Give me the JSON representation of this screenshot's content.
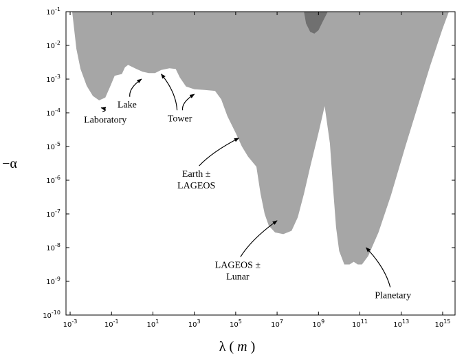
{
  "chart_data": {
    "type": "area",
    "title": "",
    "xlabel_symbol": "λ",
    "xlabel_unit": "m",
    "ylabel": "−α",
    "x_scale": "log",
    "y_scale": "log",
    "xlim_exp": [
      -3.2,
      15.6
    ],
    "ylim_exp": [
      -10,
      -1
    ],
    "x_ticks": [
      {
        "exp": -3,
        "label_base": "10",
        "label_exp": "-3"
      },
      {
        "exp": -1,
        "label_base": "10",
        "label_exp": "-1"
      },
      {
        "exp": 1,
        "label_base": "10",
        "label_exp": "1"
      },
      {
        "exp": 3,
        "label_base": "10",
        "label_exp": "3"
      },
      {
        "exp": 5,
        "label_base": "10",
        "label_exp": "5"
      },
      {
        "exp": 7,
        "label_base": "10",
        "label_exp": "7"
      },
      {
        "exp": 9,
        "label_base": "10",
        "label_exp": "9"
      },
      {
        "exp": 11,
        "label_base": "10",
        "label_exp": "11"
      },
      {
        "exp": 13,
        "label_base": "10",
        "label_exp": "13"
      },
      {
        "exp": 15,
        "label_base": "10",
        "label_exp": "15"
      }
    ],
    "y_ticks": [
      {
        "exp": -1,
        "label_base": "10",
        "label_exp": "-1"
      },
      {
        "exp": -2,
        "label_base": "10",
        "label_exp": "-2"
      },
      {
        "exp": -3,
        "label_base": "10",
        "label_exp": "-3"
      },
      {
        "exp": -4,
        "label_base": "10",
        "label_exp": "-4"
      },
      {
        "exp": -5,
        "label_base": "10",
        "label_exp": "-5"
      },
      {
        "exp": -6,
        "label_base": "10",
        "label_exp": "-6"
      },
      {
        "exp": -7,
        "label_base": "10",
        "label_exp": "-7"
      },
      {
        "exp": -8,
        "label_base": "10",
        "label_exp": "-8"
      },
      {
        "exp": -9,
        "label_base": "10",
        "label_exp": "-9"
      },
      {
        "exp": -10,
        "label_base": "10",
        "label_exp": "-10"
      }
    ],
    "colors": {
      "excluded_region": "#a6a6a6",
      "dark_region": "#707070"
    },
    "excluded_boundary_log10": [
      [
        -2.9,
        -1
      ],
      [
        -2.7,
        -2.1
      ],
      [
        -2.5,
        -2.7
      ],
      [
        -2.2,
        -3.2
      ],
      [
        -1.9,
        -3.5
      ],
      [
        -1.6,
        -3.63
      ],
      [
        -1.3,
        -3.55
      ],
      [
        -1.05,
        -3.2
      ],
      [
        -0.85,
        -2.9
      ],
      [
        -0.5,
        -2.85
      ],
      [
        -0.35,
        -2.65
      ],
      [
        -0.2,
        -2.58
      ],
      [
        0.2,
        -2.7
      ],
      [
        0.5,
        -2.78
      ],
      [
        0.8,
        -2.82
      ],
      [
        1.1,
        -2.82
      ],
      [
        1.4,
        -2.73
      ],
      [
        1.8,
        -2.68
      ],
      [
        2.1,
        -2.7
      ],
      [
        2.3,
        -2.95
      ],
      [
        2.6,
        -3.22
      ],
      [
        3.0,
        -3.3
      ],
      [
        3.5,
        -3.32
      ],
      [
        4.0,
        -3.35
      ],
      [
        4.3,
        -3.6
      ],
      [
        4.6,
        -4.1
      ],
      [
        5.0,
        -4.6
      ],
      [
        5.3,
        -5.0
      ],
      [
        5.6,
        -5.3
      ],
      [
        6.0,
        -5.6
      ],
      [
        6.2,
        -6.4
      ],
      [
        6.4,
        -7.0
      ],
      [
        6.6,
        -7.35
      ],
      [
        6.9,
        -7.55
      ],
      [
        7.3,
        -7.6
      ],
      [
        7.7,
        -7.5
      ],
      [
        8.0,
        -7.1
      ],
      [
        8.3,
        -6.4
      ],
      [
        8.6,
        -5.6
      ],
      [
        9.0,
        -4.6
      ],
      [
        9.3,
        -3.8
      ],
      [
        9.55,
        -4.9
      ],
      [
        9.7,
        -6.2
      ],
      [
        9.85,
        -7.4
      ],
      [
        10.0,
        -8.1
      ],
      [
        10.25,
        -8.5
      ],
      [
        10.5,
        -8.5
      ],
      [
        10.7,
        -8.42
      ],
      [
        10.9,
        -8.5
      ],
      [
        11.1,
        -8.5
      ],
      [
        11.4,
        -8.25
      ],
      [
        11.9,
        -7.55
      ],
      [
        12.5,
        -6.45
      ],
      [
        13.2,
        -5.0
      ],
      [
        13.8,
        -3.8
      ],
      [
        14.4,
        -2.6
      ],
      [
        15.0,
        -1.5
      ],
      [
        15.3,
        -1
      ]
    ],
    "dark_region_log10": [
      [
        8.3,
        -1
      ],
      [
        8.4,
        -1.35
      ],
      [
        8.6,
        -1.6
      ],
      [
        8.8,
        -1.65
      ],
      [
        9.0,
        -1.55
      ],
      [
        9.2,
        -1.3
      ],
      [
        9.45,
        -1
      ]
    ],
    "annotations": [
      {
        "text": "Laboratory",
        "text_x_exp": -1.3,
        "text_y_exp": -4.3,
        "target": [
          -1.5,
          -3.85
        ]
      },
      {
        "text": "Lake",
        "text_x_exp": -0.25,
        "text_y_exp": -3.85,
        "target": [
          0.45,
          -3.0
        ]
      },
      {
        "text": "Tower",
        "text_x_exp": 2.3,
        "text_y_exp": -4.25,
        "targets": [
          [
            1.4,
            -2.85
          ],
          [
            3.0,
            -3.45
          ]
        ]
      },
      {
        "text": "Earth ±",
        "text2": "LAGEOS",
        "text_x_exp": 3.1,
        "text_y_exp": -5.9,
        "target": [
          5.15,
          -4.75
        ]
      },
      {
        "text": "LAGEOS ±",
        "text2": "Lunar",
        "text_x_exp": 5.1,
        "text_y_exp": -8.6,
        "target": [
          7.0,
          -7.2
        ]
      },
      {
        "text": "Planetary",
        "text_x_exp": 12.6,
        "text_y_exp": -9.5,
        "target": [
          11.3,
          -8.0
        ]
      }
    ]
  }
}
